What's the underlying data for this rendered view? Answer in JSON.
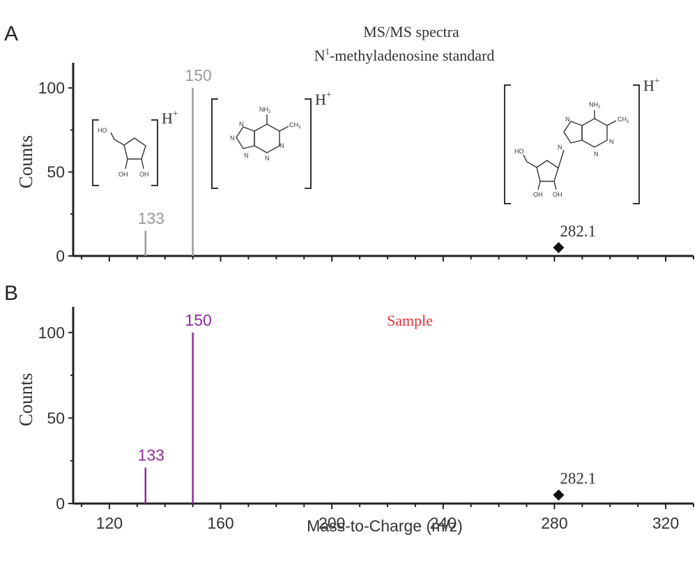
{
  "chart_data": [
    {
      "type": "bar",
      "panel_label": "A",
      "title_line1": "MS/MS spectra",
      "title_line2_prefix": "N",
      "title_line2_sup": "1",
      "title_line2_rest": "-methyladenosine standard",
      "ylabel": "Counts",
      "ylim": [
        0,
        115
      ],
      "yticks": [
        0,
        50,
        100
      ],
      "xlim": [
        107,
        330
      ],
      "peaks": [
        {
          "x": 133,
          "y": 15,
          "label": "133"
        },
        {
          "x": 150,
          "y": 100,
          "label": "150"
        }
      ],
      "marker": {
        "x": 281.5,
        "y": 5,
        "label": "282.1"
      },
      "peak_color": "#9a9a9a",
      "ion_label": "H",
      "ion_charge": "+"
    },
    {
      "type": "bar",
      "panel_label": "B",
      "subtitle": "Sample",
      "subtitle_color": "#e0303a",
      "ylabel": "Counts",
      "xlabel": "Mass-to-Charge (m/z)",
      "ylim": [
        0,
        115
      ],
      "yticks": [
        0,
        50,
        100
      ],
      "xlim": [
        107,
        330
      ],
      "xticks": [
        120,
        160,
        200,
        240,
        280,
        320
      ],
      "peaks": [
        {
          "x": 133,
          "y": 21,
          "label": "133"
        },
        {
          "x": 150,
          "y": 100,
          "label": "150"
        }
      ],
      "marker": {
        "x": 281.5,
        "y": 5,
        "label": "282.1"
      },
      "peak_color": "#8e2a9e"
    }
  ],
  "structures": {
    "amine": "NH",
    "amine_sub": "2",
    "methyl": "CH",
    "methyl_sub": "3",
    "hydroxyl": "OH",
    "ho": "HO",
    "nitrogen": "N"
  }
}
